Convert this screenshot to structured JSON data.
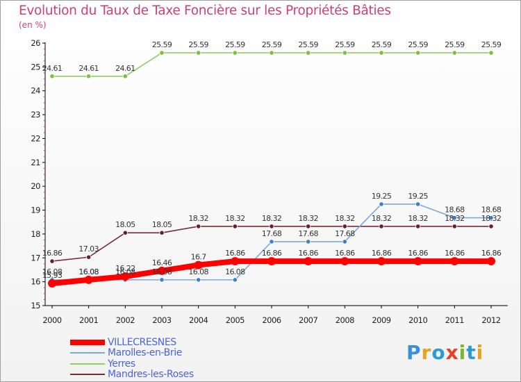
{
  "logo": {
    "text": "Proxiti",
    "colors": [
      "#3a8fd8",
      "#e8a020",
      "#2a9bd6",
      "#e84020",
      "#7ab828",
      "#2a9bd6",
      "#e8a020"
    ]
  },
  "chart_data": {
    "type": "line",
    "title": "Evolution du Taux de Taxe Foncière sur les Propriétés Bâties",
    "ylabel": "(en %)",
    "xlabel": "",
    "ylim": [
      15,
      26
    ],
    "yticks": [
      "15",
      "16",
      "17",
      "18",
      "19",
      "20",
      "21",
      "22",
      "23",
      "24",
      "25",
      "26"
    ],
    "categories": [
      "2000",
      "2001",
      "2002",
      "2003",
      "2004",
      "2005",
      "2006",
      "2007",
      "2008",
      "2009",
      "2010",
      "2011",
      "2012"
    ],
    "grid": false,
    "legend_position": "bottom-left",
    "series": [
      {
        "name": "VILLECRESNES",
        "color": "#ff0000",
        "values": [
          15.93,
          16.08,
          16.22,
          16.46,
          16.7,
          16.86,
          16.86,
          16.86,
          16.86,
          16.86,
          16.86,
          16.86,
          16.86
        ],
        "labels": [
          "15.93",
          "16.08",
          "16.22",
          "16.46",
          "16.7",
          "16.86",
          "16.86",
          "16.86",
          "16.86",
          "16.86",
          "16.86",
          "16.86",
          "16.86"
        ]
      },
      {
        "name": "Marolles-en-Brie",
        "color": "#7ca8d8",
        "values": [
          16.08,
          16.08,
          16.08,
          16.08,
          16.08,
          16.08,
          17.68,
          17.68,
          17.68,
          19.25,
          19.25,
          18.68,
          18.68
        ],
        "labels": [
          "16.08",
          "16.08",
          "16.08",
          "16.08",
          "16.08",
          "16.08",
          "17.68",
          "17.68",
          "17.68",
          "19.25",
          "19.25",
          "18.68",
          "18.68"
        ]
      },
      {
        "name": "Yerres",
        "color": "#8ed060",
        "values": [
          24.61,
          24.61,
          24.61,
          25.59,
          25.59,
          25.59,
          25.59,
          25.59,
          25.59,
          25.59,
          25.59,
          25.59,
          25.59
        ],
        "labels": [
          "24.61",
          "24.61",
          "24.61",
          "25.59",
          "25.59",
          "25.59",
          "25.59",
          "25.59",
          "25.59",
          "25.59",
          "25.59",
          "25.59",
          "25.59"
        ]
      },
      {
        "name": "Mandres-les-Roses",
        "color": "#7a2a34",
        "values": [
          16.86,
          17.03,
          18.05,
          18.05,
          18.32,
          18.32,
          18.32,
          18.32,
          18.32,
          18.32,
          18.32,
          18.32,
          18.32
        ],
        "labels": [
          "16.86",
          "17.03",
          "18.05",
          "18.05",
          "18.32",
          "18.32",
          "18.32",
          "18.32",
          "18.32",
          "18.32",
          "18.32",
          "18.32",
          "18.32"
        ]
      }
    ]
  }
}
